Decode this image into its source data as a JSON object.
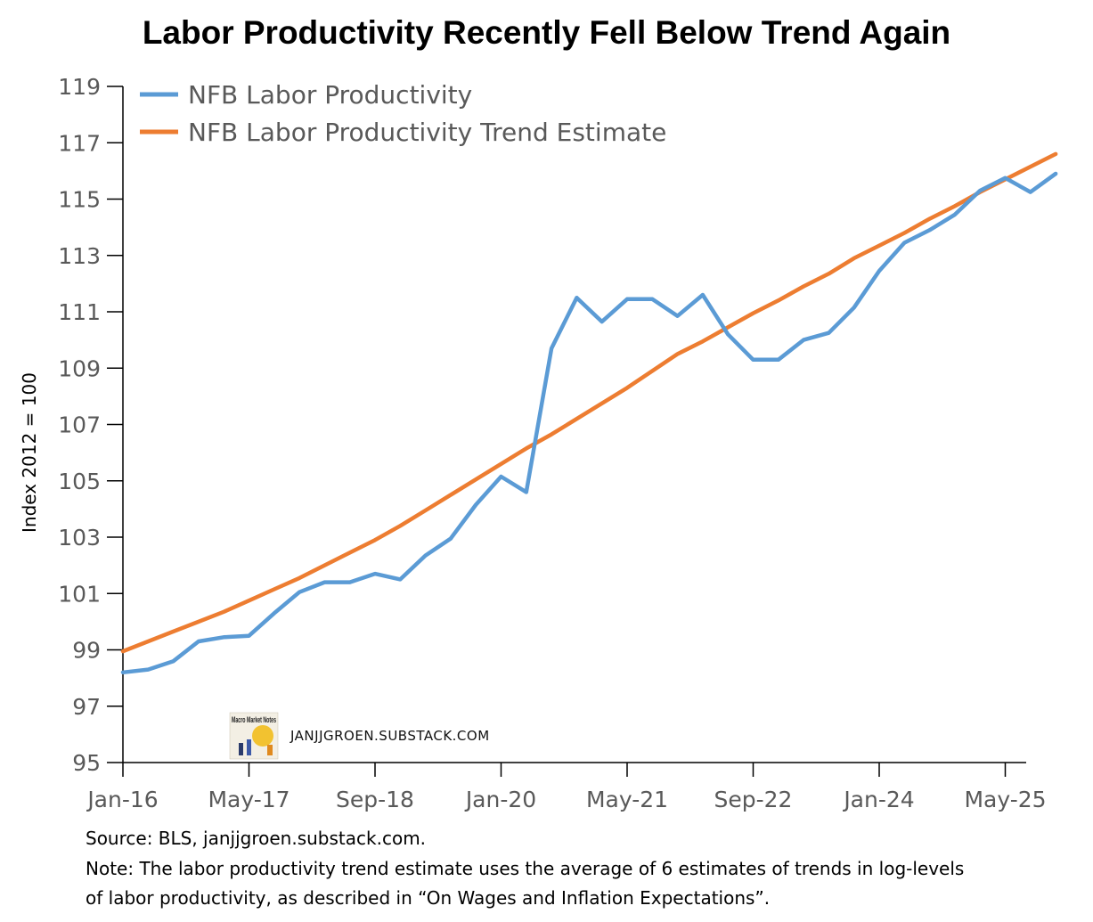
{
  "chart_data": {
    "type": "line",
    "title": "Labor Productivity Recently Fell Below Trend Again",
    "ylabel": "Index 2012 = 100",
    "xlabel": "",
    "ylim": [
      95,
      119
    ],
    "yticks": [
      "95",
      "97",
      "99",
      "101",
      "103",
      "105",
      "107",
      "109",
      "111",
      "113",
      "115",
      "117",
      "119"
    ],
    "xticks": [
      "Jan-16",
      "May-17",
      "Sep-18",
      "Jan-20",
      "May-21",
      "Sep-22",
      "Jan-24",
      "May-25"
    ],
    "x_start_quarter_index": 0,
    "x_tick_quarter_step": 5,
    "legend_position": "top-left",
    "series": [
      {
        "name": "NFB Labor Productivity",
        "color": "#5B9BD5",
        "values": [
          98.2,
          98.3,
          98.6,
          99.3,
          99.45,
          99.5,
          100.3,
          101.05,
          101.4,
          101.4,
          101.7,
          101.5,
          102.35,
          102.95,
          104.15,
          105.15,
          104.6,
          109.7,
          111.5,
          110.65,
          111.45,
          111.45,
          110.85,
          111.6,
          110.2,
          109.3,
          109.3,
          110.0,
          110.25,
          111.15,
          112.45,
          113.45,
          113.9,
          114.45,
          115.3,
          115.75,
          115.25,
          115.9
        ]
      },
      {
        "name": "NFB Labor Productivity Trend Estimate",
        "color": "#ED7D31",
        "values": [
          98.95,
          99.3,
          99.65,
          100.0,
          100.35,
          100.75,
          101.15,
          101.55,
          102.0,
          102.45,
          102.9,
          103.4,
          103.95,
          104.5,
          105.05,
          105.6,
          106.15,
          106.65,
          107.2,
          107.75,
          108.3,
          108.9,
          109.5,
          109.95,
          110.45,
          110.95,
          111.4,
          111.9,
          112.35,
          112.9,
          113.35,
          113.8,
          114.3,
          114.75,
          115.25,
          115.7,
          116.15,
          116.6
        ]
      }
    ]
  },
  "watermark": {
    "logo_text": "Macro Market Notes",
    "site": "JANJJGROEN.SUBSTACK.COM"
  },
  "notes": {
    "source": "Source: BLS, janjjgroen.substack.com.",
    "trend_line1": "Note: The labor productivity trend estimate uses the average of 6 estimates of trends in log-levels",
    "trend_line2": "of labor productivity, as described in “On Wages and Inflation Expectations”."
  }
}
